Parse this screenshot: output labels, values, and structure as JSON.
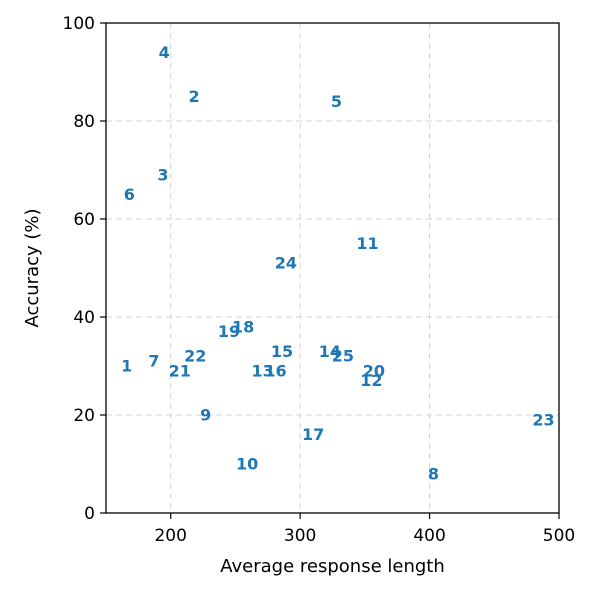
{
  "chart_data": {
    "type": "scatter",
    "title": "",
    "xlabel": "Average response length",
    "ylabel": "Accuracy (%)",
    "xlim": [
      150,
      500
    ],
    "ylim": [
      0,
      100
    ],
    "xticks": [
      200,
      300,
      400,
      500
    ],
    "yticks": [
      0,
      20,
      40,
      60,
      80,
      100
    ],
    "grid": true,
    "marker_color": "#1f77b4",
    "points": [
      {
        "label": "1",
        "x": 166,
        "y": 30
      },
      {
        "label": "2",
        "x": 218,
        "y": 85
      },
      {
        "label": "3",
        "x": 194,
        "y": 69
      },
      {
        "label": "4",
        "x": 195,
        "y": 94
      },
      {
        "label": "5",
        "x": 328,
        "y": 84
      },
      {
        "label": "6",
        "x": 168,
        "y": 65
      },
      {
        "label": "7",
        "x": 187,
        "y": 31
      },
      {
        "label": "8",
        "x": 403,
        "y": 8
      },
      {
        "label": "9",
        "x": 227,
        "y": 20
      },
      {
        "label": "10",
        "x": 259,
        "y": 10
      },
      {
        "label": "11",
        "x": 352,
        "y": 55
      },
      {
        "label": "12",
        "x": 355,
        "y": 27
      },
      {
        "label": "13",
        "x": 271,
        "y": 29
      },
      {
        "label": "14",
        "x": 323,
        "y": 33
      },
      {
        "label": "15",
        "x": 286,
        "y": 33
      },
      {
        "label": "16",
        "x": 281,
        "y": 29
      },
      {
        "label": "17",
        "x": 310,
        "y": 16
      },
      {
        "label": "18",
        "x": 256,
        "y": 38
      },
      {
        "label": "19",
        "x": 245,
        "y": 37
      },
      {
        "label": "20",
        "x": 357,
        "y": 29
      },
      {
        "label": "21",
        "x": 207,
        "y": 29
      },
      {
        "label": "22",
        "x": 219,
        "y": 32
      },
      {
        "label": "23",
        "x": 488,
        "y": 19
      },
      {
        "label": "24",
        "x": 289,
        "y": 51
      },
      {
        "label": "25",
        "x": 333,
        "y": 32
      }
    ]
  }
}
